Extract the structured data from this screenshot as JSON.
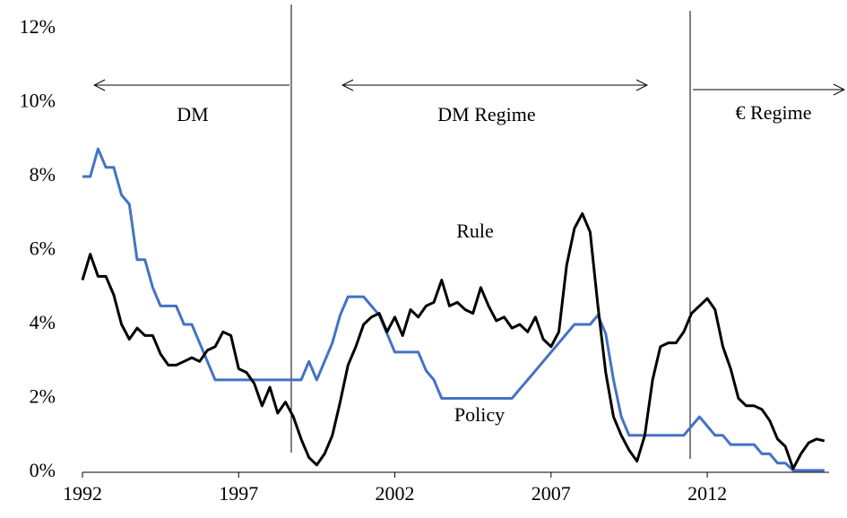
{
  "chart_data": {
    "type": "line",
    "x": [
      1992,
      1992.25,
      1992.5,
      1992.75,
      1993,
      1993.25,
      1993.5,
      1993.75,
      1994,
      1994.25,
      1994.5,
      1994.75,
      1995,
      1995.25,
      1995.5,
      1995.75,
      1996,
      1996.25,
      1996.5,
      1996.75,
      1997,
      1997.25,
      1997.5,
      1997.75,
      1998,
      1998.25,
      1998.5,
      1998.75,
      1999,
      1999.25,
      1999.5,
      1999.75,
      2000,
      2000.25,
      2000.5,
      2000.75,
      2001,
      2001.25,
      2001.5,
      2001.75,
      2002,
      2002.25,
      2002.5,
      2002.75,
      2003,
      2003.25,
      2003.5,
      2003.75,
      2004,
      2004.25,
      2004.5,
      2004.75,
      2005,
      2005.25,
      2005.5,
      2005.75,
      2006,
      2006.25,
      2006.5,
      2006.75,
      2007,
      2007.25,
      2007.5,
      2007.75,
      2008,
      2008.25,
      2008.5,
      2008.75,
      2009,
      2009.25,
      2009.5,
      2009.75,
      2010,
      2010.25,
      2010.5,
      2010.75,
      2011,
      2011.25,
      2011.5,
      2011.75,
      2012,
      2012.25,
      2012.5,
      2012.75,
      2013,
      2013.25,
      2013.5,
      2013.75,
      2014,
      2014.25,
      2014.5,
      2014.75,
      2015,
      2015.25,
      2015.5,
      2015.75
    ],
    "series": [
      {
        "name": "Policy",
        "color": "#4472c4",
        "values": [
          8,
          8,
          8.75,
          8.25,
          8.25,
          7.5,
          7.25,
          5.75,
          5.75,
          5,
          4.5,
          4.5,
          4.5,
          4,
          4,
          3.5,
          3,
          2.5,
          2.5,
          2.5,
          2.5,
          2.5,
          2.5,
          2.5,
          2.5,
          2.5,
          2.5,
          2.5,
          2.5,
          3,
          2.5,
          3,
          3.5,
          4.25,
          4.75,
          4.75,
          4.75,
          4.5,
          4.25,
          3.75,
          3.25,
          3.25,
          3.25,
          3.25,
          2.75,
          2.5,
          2,
          2,
          2,
          2,
          2,
          2,
          2,
          2,
          2,
          2,
          2.25,
          2.5,
          2.75,
          3,
          3.25,
          3.5,
          3.75,
          4,
          4,
          4,
          4.25,
          3.75,
          2.5,
          1.5,
          1,
          1,
          1,
          1,
          1,
          1,
          1,
          1,
          1.25,
          1.5,
          1.25,
          1,
          1,
          0.75,
          0.75,
          0.75,
          0.75,
          0.5,
          0.5,
          0.25,
          0.25,
          0.05,
          0.05,
          0.05,
          0.05,
          0.05
        ]
      },
      {
        "name": "Rule",
        "color": "#000000",
        "values": [
          5.2,
          5.9,
          5.3,
          5.3,
          4.8,
          4.0,
          3.6,
          3.9,
          3.7,
          3.7,
          3.2,
          2.9,
          2.9,
          3.0,
          3.1,
          3.0,
          3.3,
          3.4,
          3.8,
          3.7,
          2.8,
          2.7,
          2.4,
          1.8,
          2.3,
          1.6,
          1.9,
          1.5,
          0.9,
          0.4,
          0.2,
          0.5,
          1.0,
          1.9,
          2.9,
          3.4,
          4.0,
          4.2,
          4.3,
          3.8,
          4.2,
          3.7,
          4.4,
          4.2,
          4.5,
          4.6,
          5.2,
          4.5,
          4.6,
          4.4,
          4.3,
          5.0,
          4.5,
          4.1,
          4.2,
          3.9,
          4.0,
          3.8,
          4.2,
          3.6,
          3.4,
          3.8,
          5.6,
          6.6,
          7.0,
          6.5,
          4.5,
          2.7,
          1.5,
          1.0,
          0.6,
          0.3,
          1.0,
          2.5,
          3.4,
          3.5,
          3.5,
          3.8,
          4.3,
          4.5,
          4.7,
          4.4,
          3.4,
          2.8,
          2.0,
          1.8,
          1.8,
          1.7,
          1.4,
          0.9,
          0.7,
          0.1,
          0.5,
          0.8,
          0.9,
          0.85
        ]
      }
    ],
    "xlim": [
      1992,
      2015.9
    ],
    "xticks": [
      1992,
      1997,
      2002,
      2007,
      2012
    ],
    "ylim": [
      0,
      12
    ],
    "yticks": [
      {
        "value": 0,
        "label": "0%"
      },
      {
        "value": 2,
        "label": "2%"
      },
      {
        "value": 4,
        "label": "4%"
      },
      {
        "value": 6,
        "label": "6%"
      },
      {
        "value": 8,
        "label": "8%"
      },
      {
        "value": 10,
        "label": "10%"
      },
      {
        "value": 12,
        "label": "12%"
      }
    ],
    "annotations": [
      "DM",
      "DM Regime",
      "€ Regime",
      "Rule",
      "Policy"
    ]
  }
}
